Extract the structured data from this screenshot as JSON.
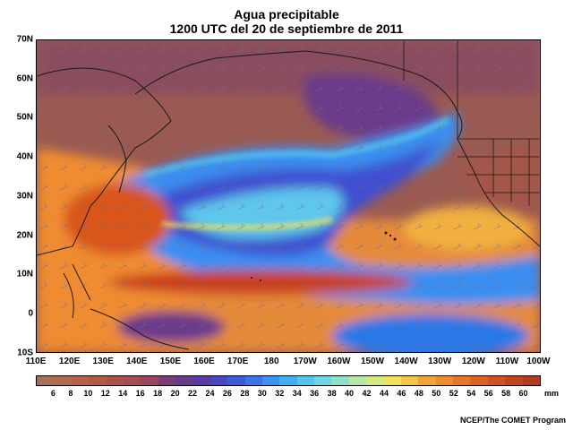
{
  "title": {
    "line1": "Agua precipitable",
    "line2": "1200 UTC del 20 de septiembre de 2011"
  },
  "lat_labels": [
    "70N",
    "60N",
    "50N",
    "40N",
    "30N",
    "20N",
    "10N",
    "0",
    "10S"
  ],
  "lon_labels": [
    "110E",
    "120E",
    "130E",
    "140E",
    "150E",
    "160E",
    "170E",
    "180",
    "170W",
    "160W",
    "150W",
    "140W",
    "130W",
    "120W",
    "110W",
    "100W"
  ],
  "colorbar": {
    "labels": [
      "6",
      "8",
      "10",
      "12",
      "14",
      "16",
      "18",
      "20",
      "22",
      "24",
      "26",
      "28",
      "30",
      "32",
      "34",
      "36",
      "38",
      "40",
      "42",
      "44",
      "46",
      "48",
      "50",
      "52",
      "54",
      "56",
      "58",
      "60"
    ],
    "colors": [
      "#a8705a",
      "#b06b4c",
      "#b56247",
      "#b25a48",
      "#a8524a",
      "#a44c54",
      "#9a4660",
      "#7e3c77",
      "#6a3a8a",
      "#5a3aa3",
      "#4a45c0",
      "#3d5bd8",
      "#3a74e8",
      "#3a92f0",
      "#40aef2",
      "#55c4ee",
      "#6dd6e4",
      "#8ee0c8",
      "#b4e8a4",
      "#d6ea7c",
      "#f2e25a",
      "#f6c444",
      "#f5a236",
      "#f08a2c",
      "#e87628",
      "#dd6424",
      "#cf5220",
      "#c0441e",
      "#b23a1e"
    ],
    "units": "mm"
  },
  "credit": "NCEP/The COMET Program"
}
